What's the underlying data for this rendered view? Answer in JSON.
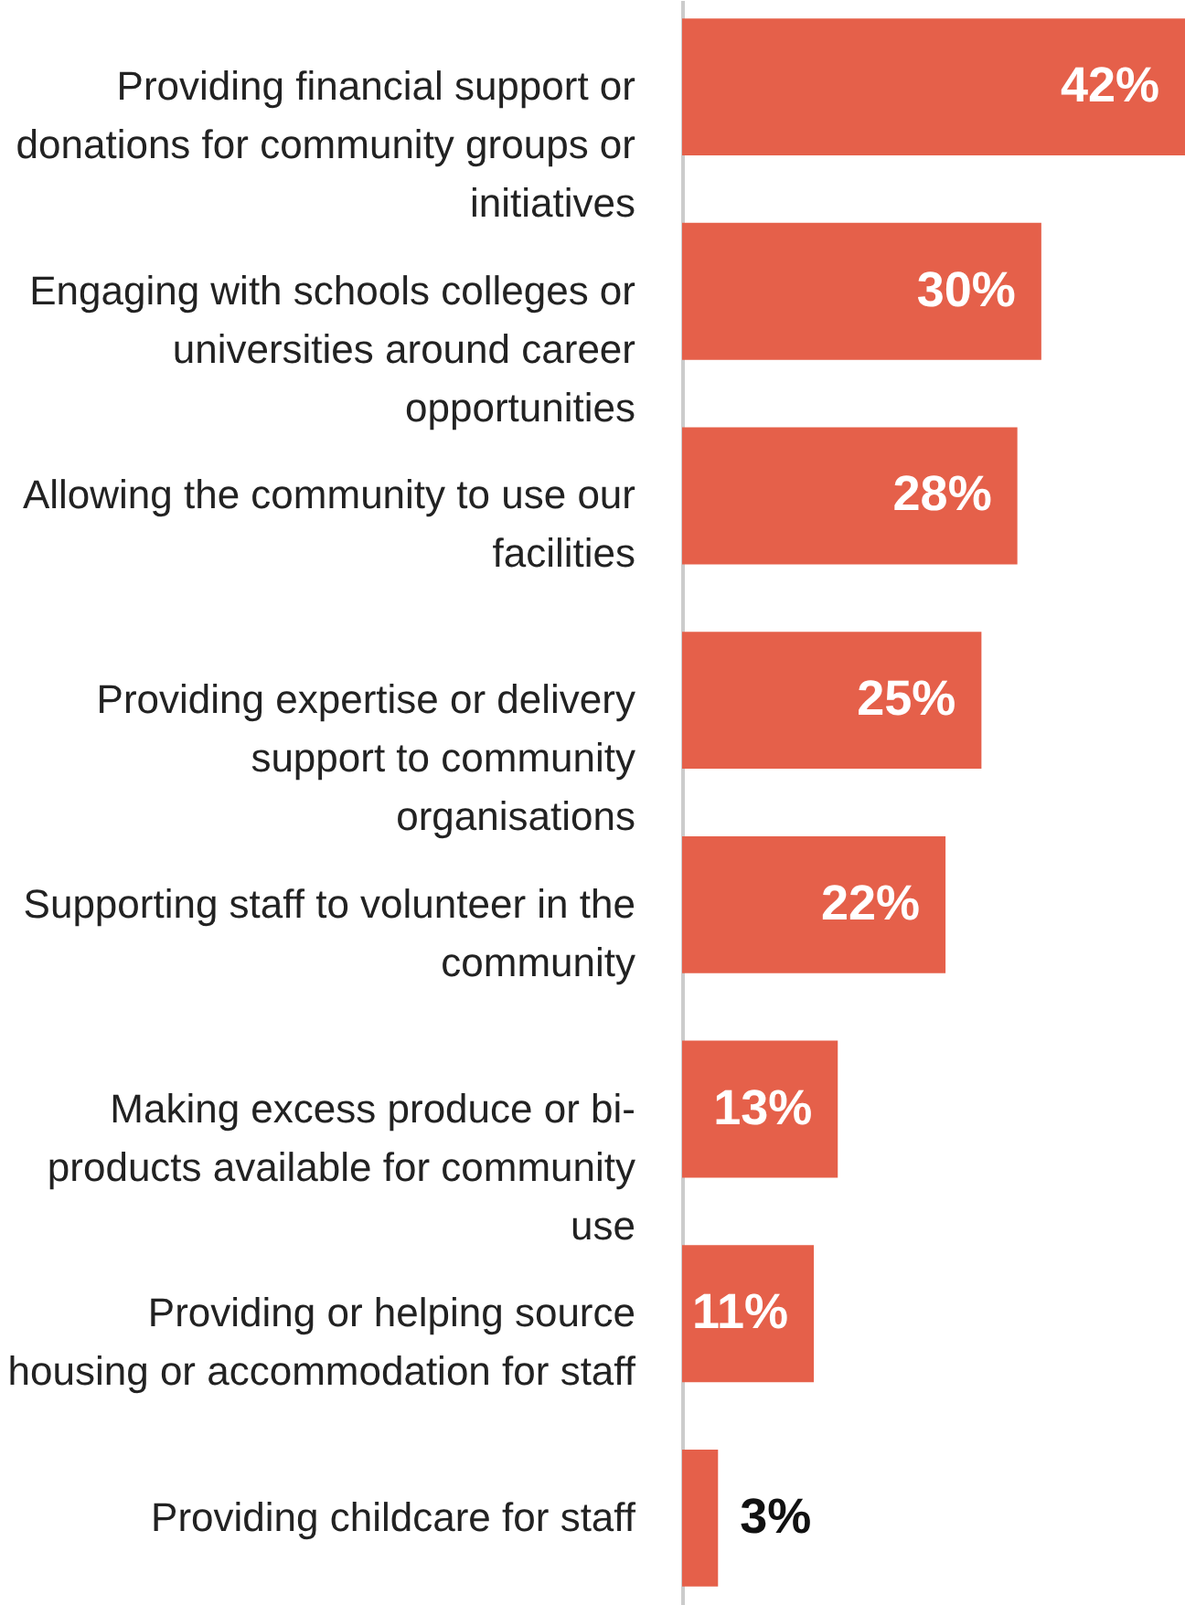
{
  "chart_data": {
    "type": "bar",
    "orientation": "horizontal",
    "color": "#e5604a",
    "categories": [
      "Providing financial support or donations for community groups or initiatives",
      "Engaging with schools colleges or universities around career opportunities",
      "Allowing the community to use our facilities",
      "Providing expertise or delivery support to community organisations",
      "Supporting staff to volunteer in the community",
      "Making excess produce or bi-products available for community use",
      "Providing or helping source housing or accommodation for staff",
      "Providing childcare for staff"
    ],
    "values": [
      42,
      30,
      28,
      25,
      22,
      13,
      11,
      3
    ],
    "value_labels": [
      "42%",
      "30%",
      "28%",
      "25%",
      "22%",
      "13%",
      "11%",
      "3%"
    ]
  }
}
